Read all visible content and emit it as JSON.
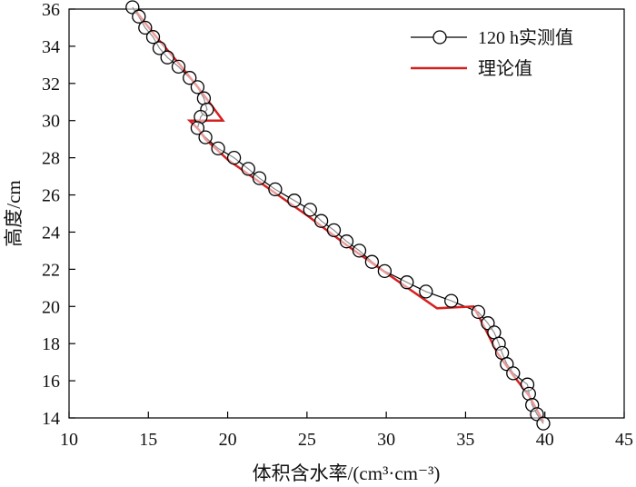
{
  "chart_data": {
    "type": "line",
    "xlabel": "体积含水率/(cm³·cm⁻³)",
    "ylabel": "高度/cm",
    "xlim": [
      10,
      45
    ],
    "ylim": [
      14,
      36
    ],
    "xticks": [
      10,
      15,
      20,
      25,
      30,
      35,
      40,
      45
    ],
    "yticks": [
      14,
      16,
      18,
      20,
      22,
      24,
      26,
      28,
      30,
      32,
      34,
      36
    ],
    "legend_position": "top-right",
    "grid": false,
    "series": [
      {
        "name": "120 h实测值",
        "style": "line-with-open-circles",
        "color": "#000000",
        "x": [
          14.0,
          14.4,
          14.8,
          15.3,
          15.7,
          16.2,
          16.9,
          17.6,
          18.1,
          18.5,
          18.7,
          18.3,
          18.1,
          18.6,
          19.4,
          20.4,
          21.3,
          22.0,
          23.0,
          24.2,
          25.2,
          25.9,
          26.7,
          27.5,
          28.3,
          29.1,
          29.9,
          31.3,
          32.5,
          34.1,
          35.8,
          36.4,
          36.8,
          37.1,
          37.3,
          37.6,
          38.0,
          38.9,
          39.0,
          39.2,
          39.5,
          39.9
        ],
        "y": [
          36.1,
          35.6,
          35.0,
          34.5,
          33.9,
          33.4,
          32.9,
          32.3,
          31.8,
          31.2,
          30.6,
          30.2,
          29.6,
          29.1,
          28.5,
          28.0,
          27.4,
          26.9,
          26.3,
          25.7,
          25.2,
          24.6,
          24.1,
          23.5,
          23.0,
          22.4,
          21.9,
          21.3,
          20.8,
          20.3,
          19.7,
          19.1,
          18.6,
          18.0,
          17.5,
          16.9,
          16.4,
          15.8,
          15.3,
          14.7,
          14.2,
          13.7
        ]
      },
      {
        "name": "理论值",
        "style": "line",
        "color": "#d62020",
        "x": [
          14.2,
          15.5,
          17.0,
          18.3,
          19.7,
          17.6,
          18.2,
          18.6,
          20.0,
          22.5,
          25.0,
          27.5,
          30.0,
          33.2,
          35.5,
          36.3,
          37.0,
          38.0,
          39.0,
          39.9
        ],
        "y": [
          35.9,
          34.5,
          33.0,
          31.6,
          30.0,
          30.0,
          29.5,
          29.0,
          27.9,
          26.4,
          24.9,
          23.3,
          21.8,
          19.9,
          20.0,
          18.7,
          17.5,
          16.3,
          15.2,
          13.8
        ]
      }
    ]
  }
}
